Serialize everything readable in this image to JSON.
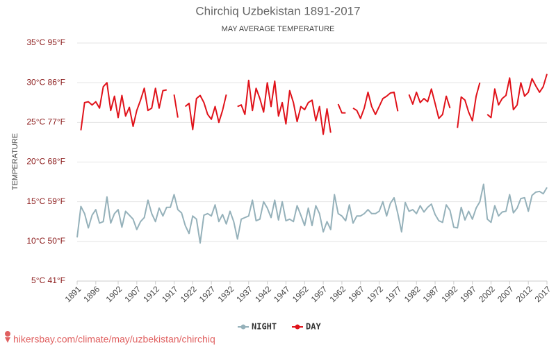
{
  "chart_data": {
    "type": "line",
    "title": "Chirchiq Uzbekistan 1891-2017",
    "subtitle": "MAY AVERAGE TEMPERATURE",
    "y_label": "TEMPERATURE",
    "source": "hikersbay.com/climate/may/uzbekistan/chirchiq",
    "xlim": [
      1891,
      2017
    ],
    "xticks": [
      1891,
      1896,
      1902,
      1907,
      1912,
      1917,
      1922,
      1927,
      1932,
      1937,
      1942,
      1947,
      1952,
      1957,
      1962,
      1967,
      1972,
      1977,
      1982,
      1987,
      1992,
      1997,
      2002,
      2007,
      2012,
      2017
    ],
    "ylim": [
      5,
      35
    ],
    "yticks": [
      {
        "value": 5,
        "label": "5°C 41°F"
      },
      {
        "value": 10,
        "label": "10°C 50°F"
      },
      {
        "value": 15,
        "label": "15°C 59°F"
      },
      {
        "value": 20,
        "label": "20°C 68°F"
      },
      {
        "value": 25,
        "label": "25°C 77°F"
      },
      {
        "value": 30,
        "label": "30°C 86°F"
      },
      {
        "value": 35,
        "label": "35°C 95°F"
      }
    ],
    "grid": true,
    "legend": "bottom",
    "x": [
      1891,
      1892,
      1893,
      1894,
      1895,
      1896,
      1897,
      1898,
      1899,
      1900,
      1901,
      1902,
      1903,
      1904,
      1905,
      1906,
      1907,
      1908,
      1909,
      1910,
      1911,
      1912,
      1913,
      1914,
      1915,
      1916,
      1917,
      1918,
      1919,
      1920,
      1921,
      1922,
      1923,
      1924,
      1925,
      1926,
      1927,
      1928,
      1929,
      1930,
      1931,
      1932,
      1933,
      1934,
      1935,
      1936,
      1937,
      1938,
      1939,
      1940,
      1941,
      1942,
      1943,
      1944,
      1945,
      1946,
      1947,
      1948,
      1949,
      1950,
      1951,
      1952,
      1953,
      1954,
      1955,
      1956,
      1957,
      1958,
      1959,
      1960,
      1961,
      1962,
      1963,
      1964,
      1965,
      1966,
      1967,
      1968,
      1969,
      1970,
      1971,
      1972,
      1973,
      1974,
      1975,
      1976,
      1977,
      1978,
      1979,
      1980,
      1981,
      1982,
      1983,
      1984,
      1985,
      1986,
      1987,
      1988,
      1989,
      1990,
      1991,
      1992,
      1993,
      1994,
      1995,
      1996,
      1997,
      1998,
      1999,
      2000,
      2001,
      2002,
      2003,
      2004,
      2005,
      2006,
      2007,
      2008,
      2009,
      2010,
      2011,
      2012,
      2013,
      2014,
      2015,
      2016,
      2017
    ],
    "series": [
      {
        "name": "NIGHT",
        "color": "#95b1ba",
        "values": [
          10.5,
          14.4,
          13.5,
          11.7,
          13.3,
          14,
          12.3,
          12.5,
          15.6,
          12.3,
          13.5,
          14,
          11.8,
          13.8,
          13.3,
          12.8,
          11.5,
          12.5,
          13,
          15.2,
          13.5,
          12.5,
          14.2,
          13.2,
          14.3,
          14.3,
          15.9,
          14,
          13.6,
          12,
          11,
          13.2,
          12.8,
          9.8,
          13.3,
          13.5,
          13.2,
          14.6,
          12.5,
          13.4,
          12.2,
          13.8,
          12.5,
          10.3,
          12.8,
          13,
          13.2,
          15.2,
          12.6,
          12.8,
          15,
          14.2,
          13,
          15.2,
          12.7,
          15,
          12.6,
          12.8,
          12.5,
          14.5,
          13.3,
          12,
          14.2,
          12,
          14.5,
          13.5,
          11.2,
          12.5,
          11.5,
          15.9,
          13.5,
          13.2,
          12.6,
          14.6,
          12.3,
          13.2,
          13.2,
          13.5,
          14,
          13.5,
          13.5,
          13.8,
          15,
          13.2,
          14.8,
          15.5,
          13.5,
          11.2,
          14.9,
          13.8,
          14,
          13.5,
          14.5,
          13.7,
          14.3,
          14.7,
          13.4,
          12.6,
          12.4,
          14.6,
          13.9,
          11.8,
          11.7,
          14.3,
          12.7,
          13.8,
          12.8,
          14.2,
          15,
          17.2,
          12.8,
          12.4,
          14.5,
          13.2,
          13.7,
          13.8,
          15.9,
          13.6,
          14.2,
          15.4,
          15.5,
          13.8,
          15.8,
          16.2,
          16.3,
          16,
          16.8
        ]
      },
      {
        "name": "DAY",
        "color": "#e0121a",
        "values": [
          null,
          24,
          27.5,
          27.6,
          27.2,
          27.6,
          26.8,
          29.5,
          30,
          26.5,
          28.3,
          25.6,
          28.4,
          25.8,
          26.9,
          24.5,
          26.5,
          27.8,
          29.3,
          26.5,
          26.8,
          29.3,
          26.8,
          29,
          29.1,
          null,
          28.5,
          25.6,
          null,
          27,
          27.4,
          24.1,
          28,
          28.4,
          27.5,
          26,
          25.4,
          27,
          25,
          26.5,
          28.5,
          null,
          null,
          27,
          27.2,
          26,
          30.3,
          26.5,
          29.3,
          28,
          26.3,
          30,
          27,
          30.2,
          25.8,
          27.5,
          24.8,
          29,
          27.5,
          25.1,
          27,
          26.6,
          27.5,
          27.8,
          25.2,
          27,
          23.5,
          26.7,
          23.7,
          null,
          27.3,
          26.2,
          26.2,
          null,
          26.8,
          26.5,
          25.5,
          26.8,
          28.8,
          27,
          26,
          27,
          28,
          28.3,
          28.7,
          28.8,
          26.4,
          null,
          null,
          28.5,
          27.3,
          28.8,
          27.5,
          28,
          27.6,
          29.2,
          27.4,
          25.5,
          26,
          28.3,
          26.8,
          null,
          24.3,
          28.2,
          27.8,
          26.3,
          25.2,
          28.3,
          30,
          null,
          26,
          25.6,
          29.2,
          27.2,
          28,
          28.4,
          30.6,
          26.6,
          27.2,
          30,
          28.3,
          28.8,
          30.5,
          29.6,
          28.8,
          29.5,
          31.1
        ]
      }
    ]
  }
}
